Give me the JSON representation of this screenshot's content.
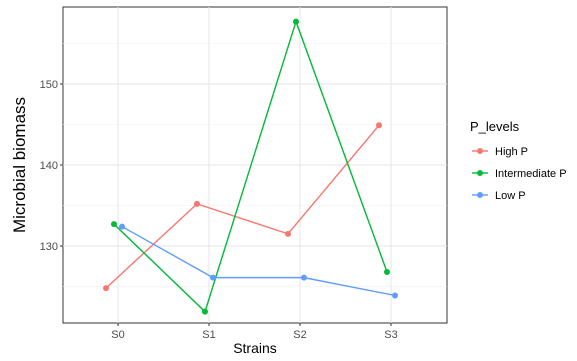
{
  "chart_data": {
    "type": "line",
    "xlabel": "Strains",
    "ylabel": "Microbial biomass",
    "categories": [
      "S0",
      "S1",
      "S2",
      "S3"
    ],
    "yticks": [
      130,
      140,
      150
    ],
    "ylim": [
      120.5,
      159.5
    ],
    "grid": true,
    "legend": {
      "title": "P_levels",
      "position": "right"
    },
    "series": [
      {
        "name": "High P",
        "color": "#F8766D",
        "values": [
          124.8,
          135.2,
          131.5,
          144.9
        ]
      },
      {
        "name": "Intermediate P",
        "color": "#00BA38",
        "values": [
          132.7,
          121.9,
          157.7,
          126.8
        ]
      },
      {
        "name": "Low P",
        "color": "#619CFF",
        "values": [
          132.4,
          126.1,
          126.1,
          123.9
        ]
      }
    ]
  }
}
